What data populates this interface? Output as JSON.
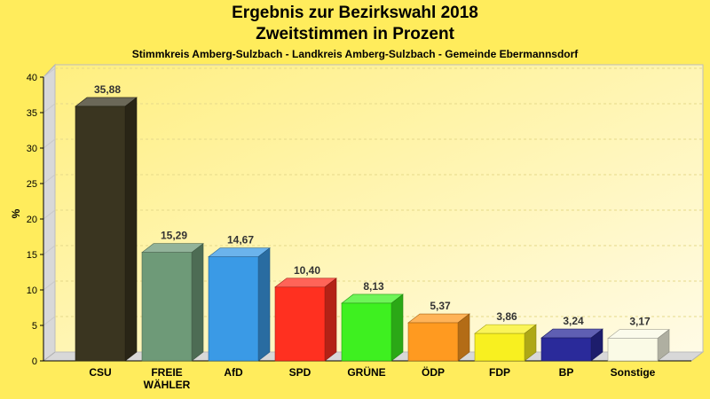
{
  "chart_data": {
    "type": "bar",
    "title": "Ergebnis zur Bezirkswahl 2018",
    "title_line2": "Zweitstimmen in Prozent",
    "subtitle": "Stimmkreis Amberg-Sulzbach - Landkreis Amberg-Sulzbach - Gemeinde Ebermannsdorf",
    "ylabel": "%",
    "xlabel": "",
    "ylim": [
      0,
      40
    ],
    "yticks": [
      0,
      5,
      10,
      15,
      20,
      25,
      30,
      35,
      40
    ],
    "grid": true,
    "categories": [
      "CSU",
      "FREIE WÄHLER",
      "AfD",
      "SPD",
      "GRÜNE",
      "ÖDP",
      "FDP",
      "BP",
      "Sonstige"
    ],
    "category_lines": [
      [
        "CSU"
      ],
      [
        "FREIE",
        "WÄHLER"
      ],
      [
        "AfD"
      ],
      [
        "SPD"
      ],
      [
        "GRÜNE"
      ],
      [
        "ÖDP"
      ],
      [
        "FDP"
      ],
      [
        "BP"
      ],
      [
        "Sonstige"
      ]
    ],
    "values": [
      35.88,
      15.29,
      14.67,
      10.4,
      8.13,
      5.37,
      3.86,
      3.24,
      3.17
    ],
    "value_labels": [
      "35,88",
      "15,29",
      "14,67",
      "10,40",
      "8,13",
      "5,37",
      "3,86",
      "3,24",
      "3,17"
    ],
    "colors": [
      "#3a3520",
      "#6e9a78",
      "#3a9ae6",
      "#ff3020",
      "#3ef020",
      "#ff9a20",
      "#f8f020",
      "#2a2a9a",
      "#fafae6"
    ]
  }
}
